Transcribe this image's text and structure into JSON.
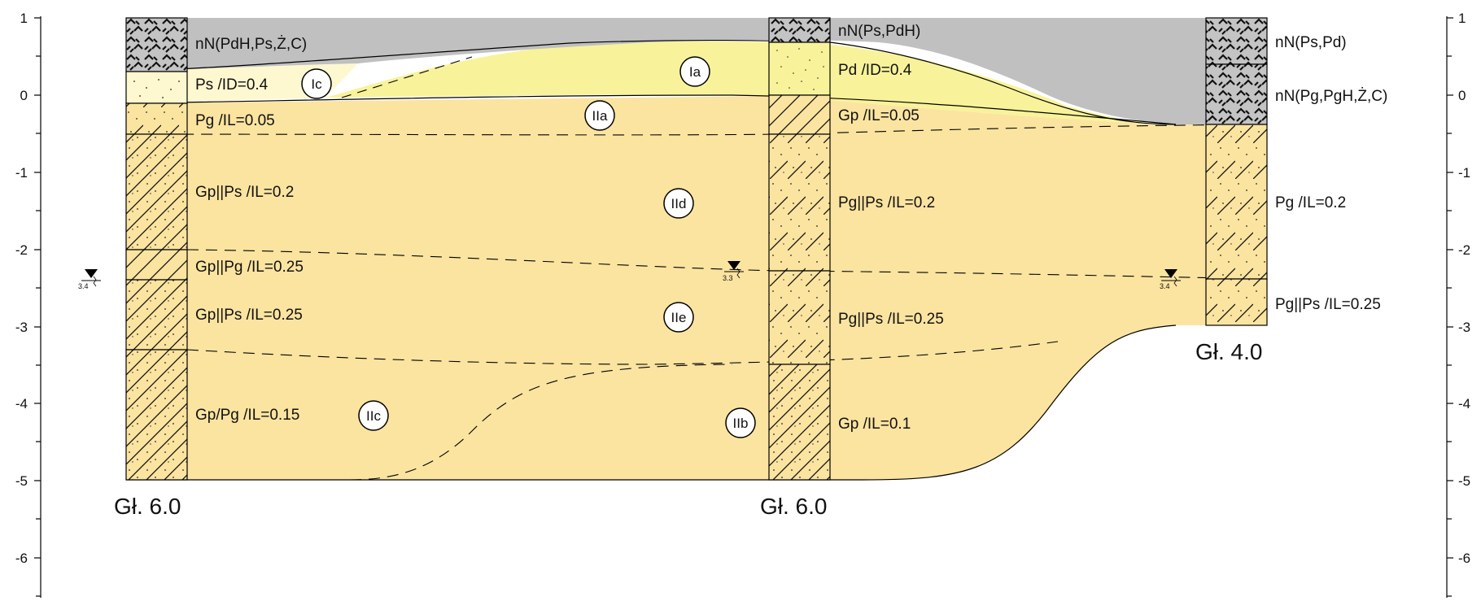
{
  "axis": {
    "ticks": [
      "1",
      "0",
      "-1",
      "-2",
      "-3",
      "-4",
      "-5",
      "-6"
    ]
  },
  "boreholes": [
    {
      "depth_label": "Gł. 6.0",
      "layers": [
        "nN(PdH,Ps,Ż,C)",
        "Ps /ID=0.4",
        "Pg /IL=0.05",
        "Gp||Ps /IL=0.2",
        "Gp||Pg /IL=0.25",
        "Gp||Ps /IL=0.25",
        "Gp/Pg /IL=0.15"
      ],
      "water_level": "3.4"
    },
    {
      "depth_label": "Gł. 6.0",
      "layers": [
        "nN(Ps,PdH)",
        "Pd /ID=0.4",
        "Gp /IL=0.05",
        "Pg||Ps /IL=0.2",
        "Pg||Ps /IL=0.25",
        "Gp /IL=0.1"
      ],
      "water_level": "3.3"
    },
    {
      "depth_label": "Gł. 4.0",
      "layers": [
        "nN(Ps,Pd)",
        "nN(Pg,PgH,Ż,C)",
        "Pg /IL=0.2",
        "Pg||Ps /IL=0.25"
      ],
      "water_level": "3.4"
    }
  ],
  "left_water_marker": "3.4",
  "zones": [
    "Ia",
    "Ic",
    "IIa",
    "IId",
    "IIe",
    "IIc",
    "IIb"
  ],
  "colors": {
    "fill_anthropogenic": "#c0c0c0",
    "fill_sand_light": "#fdf8cf",
    "fill_sand": "#f8f39a",
    "fill_clay": "#fbe4a0"
  }
}
